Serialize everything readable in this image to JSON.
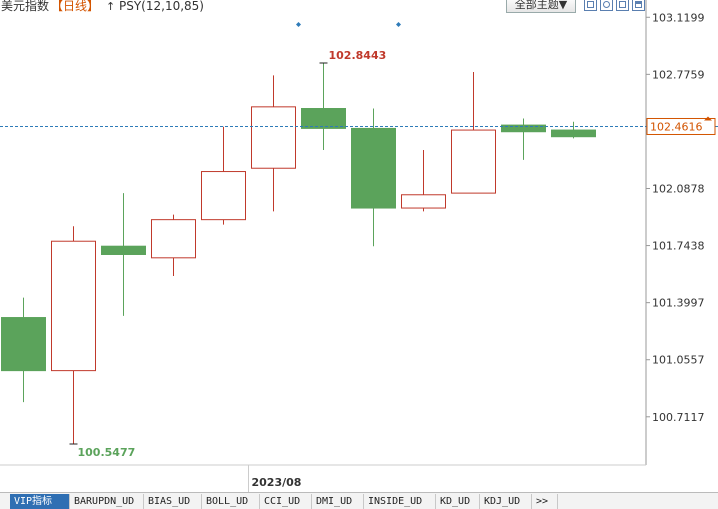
{
  "header": {
    "title": "美元指数",
    "period": "【日线】",
    "indicator_marker": "↑",
    "indicator": "PSY(12,10,85)",
    "theme_button": "全部主题▼"
  },
  "colors": {
    "up": "#c0392b",
    "down": "#5ba35b",
    "current_line": "#2e7bb8",
    "high_label": "#c0392b",
    "low_label": "#5ba35b"
  },
  "chart_data": {
    "type": "candlestick",
    "title": "",
    "candles": [
      {
        "open": 101.31,
        "close": 100.99,
        "high": 101.43,
        "low": 100.8
      },
      {
        "open": 100.99,
        "close": 101.77,
        "high": 101.86,
        "low": 100.5477
      },
      {
        "open": 101.74,
        "close": 101.69,
        "high": 102.06,
        "low": 101.32
      },
      {
        "open": 101.67,
        "close": 101.9,
        "high": 101.93,
        "low": 101.56
      },
      {
        "open": 101.9,
        "close": 102.19,
        "high": 102.46,
        "low": 101.87
      },
      {
        "open": 102.21,
        "close": 102.58,
        "high": 102.77,
        "low": 101.95
      },
      {
        "open": 102.57,
        "close": 102.45,
        "high": 102.8443,
        "low": 102.32
      },
      {
        "open": 102.45,
        "close": 101.97,
        "high": 102.57,
        "low": 101.74
      },
      {
        "open": 101.97,
        "close": 102.05,
        "high": 102.32,
        "low": 101.95
      },
      {
        "open": 102.06,
        "close": 102.44,
        "high": 102.79,
        "low": 102.06
      },
      {
        "open": 102.47,
        "close": 102.43,
        "high": 102.51,
        "low": 102.26
      },
      {
        "open": 102.44,
        "close": 102.4,
        "high": 102.49,
        "low": 102.39
      }
    ],
    "y_ticks": [
      103.1199,
      102.7759,
      102.0878,
      101.7438,
      101.3997,
      101.0557,
      100.7117
    ],
    "ylim": [
      100.46,
      103.19
    ],
    "current_value": 102.4616,
    "current_label": "102.4616",
    "high_label": "102.8443",
    "low_label": "100.5477",
    "x_label": "2023/08",
    "x_label_index": 4.5,
    "markers": [
      5.5,
      7.5
    ]
  },
  "tabs": [
    "VIP指标",
    "BARUPDN_UD",
    "BIAS_UD",
    "BOLL_UD",
    "CCI_UD",
    "DMI_UD",
    "INSIDE_UD",
    "KD_UD",
    "KDJ_UD",
    ">>"
  ]
}
